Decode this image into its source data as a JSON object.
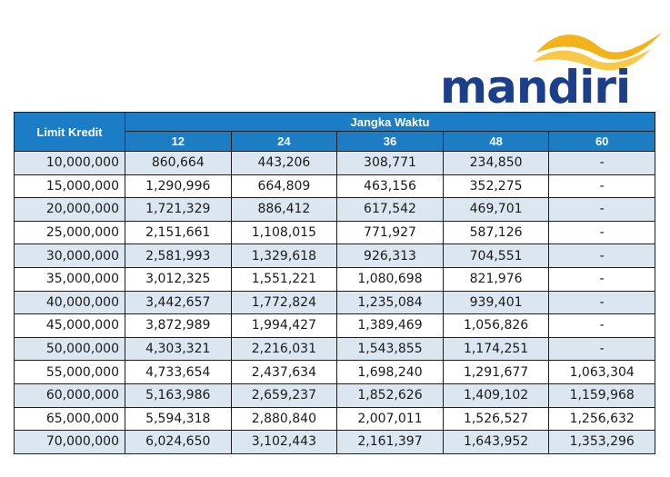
{
  "logo": {
    "text": "mandiri"
  },
  "table": {
    "limit_header": "Limit Kredit",
    "term_header": "Jangka Waktu",
    "terms": [
      "12",
      "24",
      "36",
      "48",
      "60"
    ],
    "rows": [
      [
        "10,000,000",
        "860,664",
        "443,206",
        "308,771",
        "234,850",
        "-"
      ],
      [
        "15,000,000",
        "1,290,996",
        "664,809",
        "463,156",
        "352,275",
        "-"
      ],
      [
        "20,000,000",
        "1,721,329",
        "886,412",
        "617,542",
        "469,701",
        "-"
      ],
      [
        "25,000,000",
        "2,151,661",
        "1,108,015",
        "771,927",
        "587,126",
        "-"
      ],
      [
        "30,000,000",
        "2,581,993",
        "1,329,618",
        "926,313",
        "704,551",
        "-"
      ],
      [
        "35,000,000",
        "3,012,325",
        "1,551,221",
        "1,080,698",
        "821,976",
        "-"
      ],
      [
        "40,000,000",
        "3,442,657",
        "1,772,824",
        "1,235,084",
        "939,401",
        "-"
      ],
      [
        "45,000,000",
        "3,872,989",
        "1,994,427",
        "1,389,469",
        "1,056,826",
        "-"
      ],
      [
        "50,000,000",
        "4,303,321",
        "2,216,031",
        "1,543,855",
        "1,174,251",
        "-"
      ],
      [
        "55,000,000",
        "4,733,654",
        "2,437,634",
        "1,698,240",
        "1,291,677",
        "1,063,304"
      ],
      [
        "60,000,000",
        "5,163,986",
        "2,659,237",
        "1,852,626",
        "1,409,102",
        "1,159,968"
      ],
      [
        "65,000,000",
        "5,594,318",
        "2,880,840",
        "2,007,011",
        "1,526,527",
        "1,256,632"
      ],
      [
        "70,000,000",
        "6,024,650",
        "3,102,443",
        "2,161,397",
        "1,643,952",
        "1,353,296"
      ]
    ]
  },
  "colors": {
    "brand_blue": "#1b3f8b",
    "brand_gold": "#f2b21b",
    "header_blue": "#1f82c9",
    "row_shade": "#dce6f1"
  }
}
